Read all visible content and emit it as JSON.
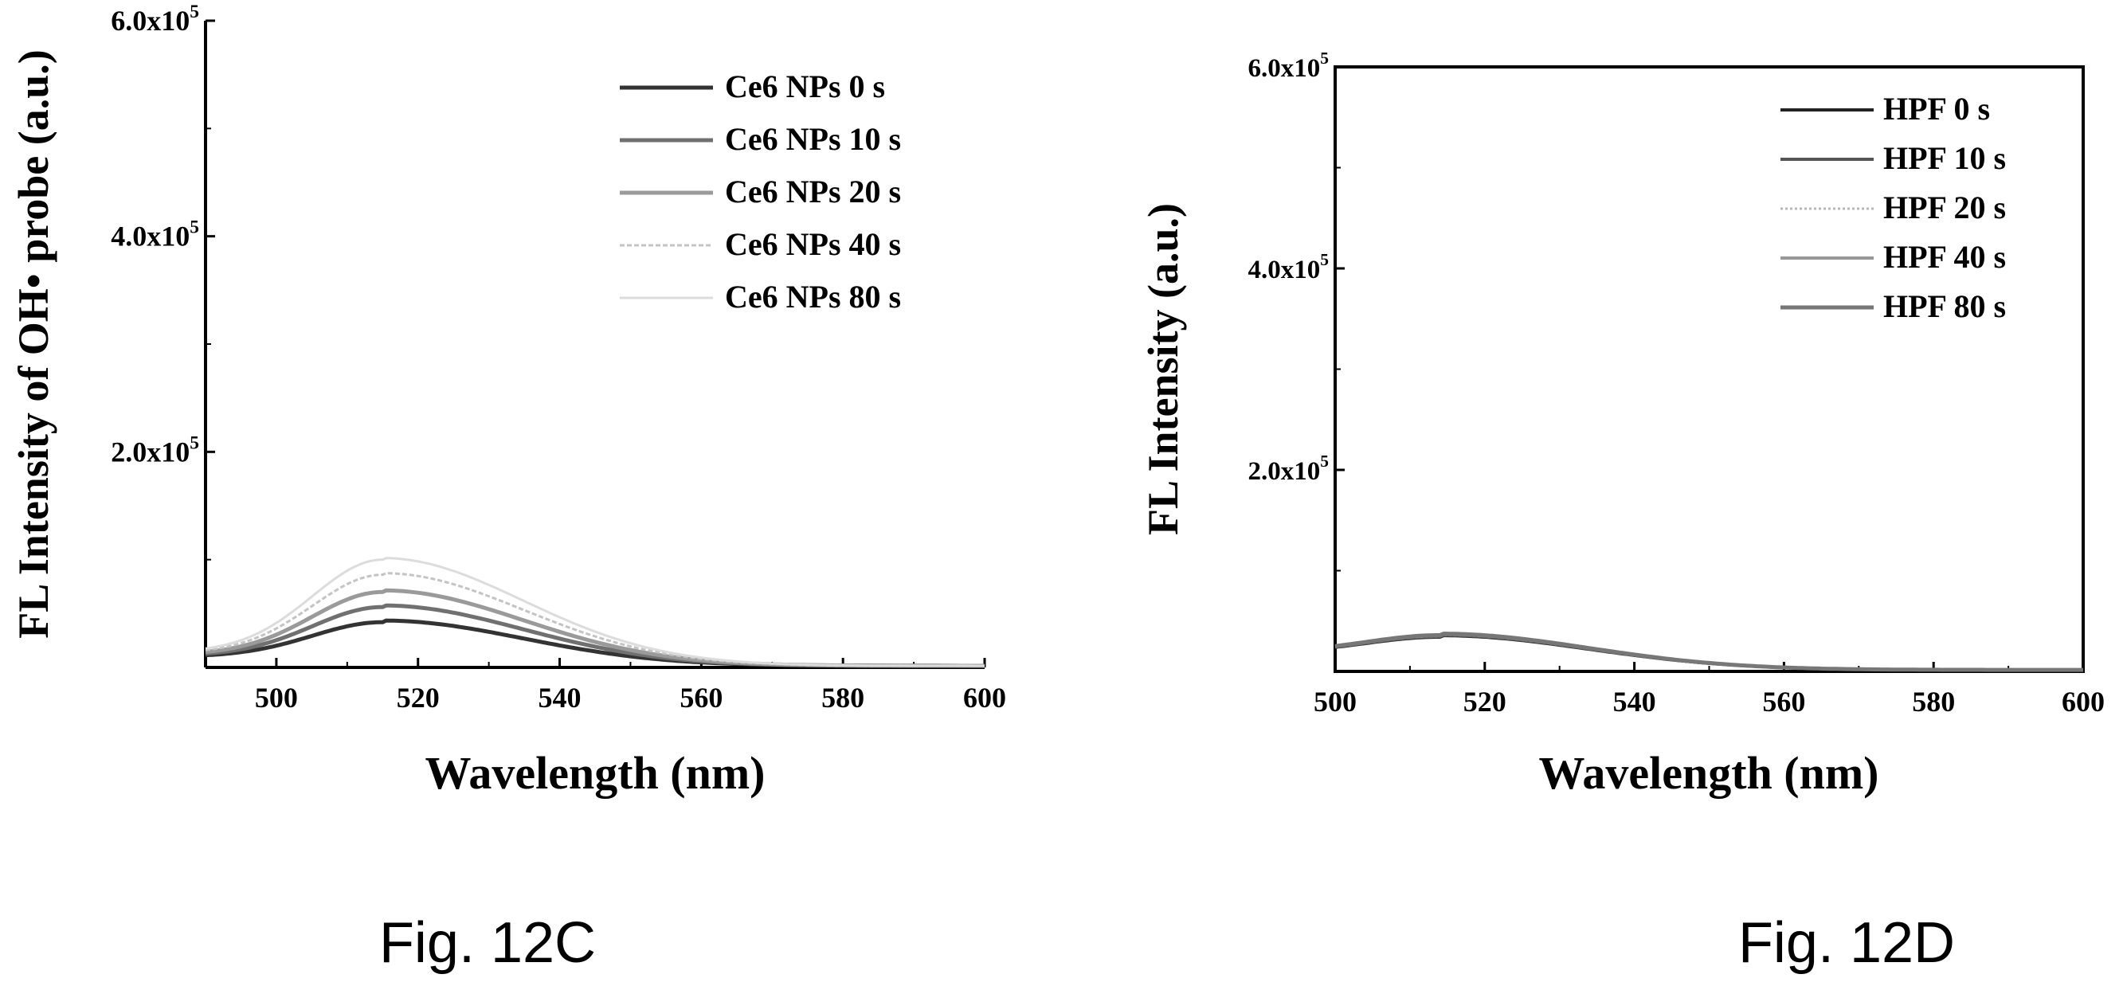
{
  "figures": [
    {
      "caption": "Fig. 12C"
    },
    {
      "caption": "Fig. 12D"
    }
  ],
  "chart_data": [
    {
      "type": "line",
      "xlabel": "Wavelength (nm)",
      "ylabel": "FL Intensity of OH• probe (a.u.)",
      "xlim": [
        490,
        600
      ],
      "ylim": [
        0,
        600000
      ],
      "xticks": [
        500,
        520,
        540,
        560,
        580,
        600
      ],
      "yticks": [
        {
          "value": 200000,
          "mantissa": "2.0x10",
          "exp": "5"
        },
        {
          "value": 400000,
          "mantissa": "4.0x10",
          "exp": "5"
        },
        {
          "value": 600000,
          "mantissa": "6.0x10",
          "exp": "5"
        }
      ],
      "legend_position": "top-right",
      "peak_wavelength": 515,
      "series": [
        {
          "name": "Ce6 NPs 0 s",
          "peak": 42000,
          "start": 10000,
          "color": "#333333",
          "dash": "",
          "width": 5
        },
        {
          "name": "Ce6 NPs 10 s",
          "peak": 56000,
          "start": 11000,
          "color": "#707070",
          "dash": "",
          "width": 5
        },
        {
          "name": "Ce6 NPs 20 s",
          "peak": 70000,
          "start": 12000,
          "color": "#9a9a9a",
          "dash": "",
          "width": 5
        },
        {
          "name": "Ce6 NPs 40 s",
          "peak": 86000,
          "start": 13000,
          "color": "#c4c4c4",
          "dash": "6,3",
          "width": 3
        },
        {
          "name": "Ce6 NPs 80 s",
          "peak": 100000,
          "start": 14000,
          "color": "#dcdcdc",
          "dash": "",
          "width": 3
        }
      ]
    },
    {
      "type": "line",
      "xlabel": "Wavelength (nm)",
      "ylabel": "FL Intensity (a.u.)",
      "xlim": [
        500,
        600
      ],
      "ylim": [
        0,
        600000
      ],
      "xticks": [
        500,
        520,
        540,
        560,
        580,
        600
      ],
      "yticks": [
        {
          "value": 200000,
          "mantissa": "2.0x10",
          "exp": "5"
        },
        {
          "value": 400000,
          "mantissa": "4.0x10",
          "exp": "5"
        },
        {
          "value": 600000,
          "mantissa": "6.0x10",
          "exp": "5"
        }
      ],
      "legend_position": "top-right",
      "peak_wavelength": 514,
      "series": [
        {
          "name": "HPF 0 s",
          "peak": 34000,
          "start": 18000,
          "color": "#222222",
          "dash": "",
          "width": 4
        },
        {
          "name": "HPF 10 s",
          "peak": 34500,
          "start": 18200,
          "color": "#555555",
          "dash": "",
          "width": 4
        },
        {
          "name": "HPF 20 s",
          "peak": 35000,
          "start": 18400,
          "color": "#b8b8b8",
          "dash": "3,3",
          "width": 3
        },
        {
          "name": "HPF 40 s",
          "peak": 35500,
          "start": 18600,
          "color": "#999999",
          "dash": "",
          "width": 4
        },
        {
          "name": "HPF 80 s",
          "peak": 36000,
          "start": 18800,
          "color": "#777777",
          "dash": "",
          "width": 5
        }
      ]
    }
  ]
}
